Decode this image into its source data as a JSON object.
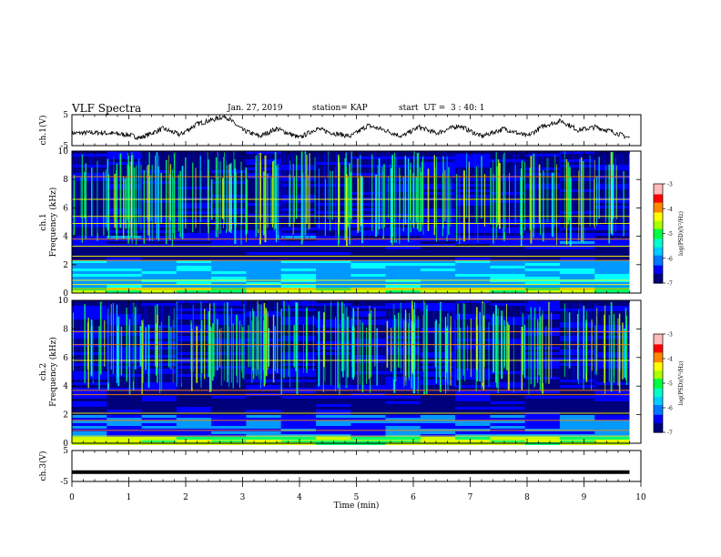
{
  "header": {
    "title": "VLF Spectra",
    "date": "Jan. 27, 2019",
    "station": "station= KAP",
    "start": "start  UT =  3 : 40: 1"
  },
  "colors": {
    "spectrum_scale": [
      "#00007a",
      "#0000ff",
      "#0099ff",
      "#00ffff",
      "#00ff66",
      "#ccff00",
      "#ffff00",
      "#ff8800",
      "#ff0000",
      "#ffaaaa"
    ],
    "trace": "#000000",
    "axis": "#000000"
  },
  "chart_data": [
    {
      "type": "line",
      "panel": "ch1-waveform",
      "ylabel": "ch.1(V)",
      "xlim": [
        0,
        10
      ],
      "ylim": [
        -5,
        5
      ],
      "yticks": [
        "5",
        "-5"
      ],
      "x_end": 9.8,
      "description_points": [
        [
          0.0,
          -1.0
        ],
        [
          0.5,
          -0.8
        ],
        [
          1.0,
          -1.5
        ],
        [
          1.2,
          -2.5
        ],
        [
          1.6,
          0.5
        ],
        [
          1.9,
          -1.5
        ],
        [
          2.2,
          2.0
        ],
        [
          2.5,
          3.5
        ],
        [
          2.7,
          4.5
        ],
        [
          3.0,
          0.0
        ],
        [
          3.3,
          -2.0
        ],
        [
          3.6,
          0.5
        ],
        [
          4.0,
          -2.5
        ],
        [
          4.3,
          0.5
        ],
        [
          4.6,
          -1.0
        ],
        [
          4.9,
          -2.0
        ],
        [
          5.2,
          1.5
        ],
        [
          5.5,
          0.0
        ],
        [
          5.8,
          -2.0
        ],
        [
          6.1,
          1.0
        ],
        [
          6.4,
          -1.0
        ],
        [
          6.8,
          1.5
        ],
        [
          7.2,
          -2.0
        ],
        [
          7.6,
          0.5
        ],
        [
          8.0,
          -2.0
        ],
        [
          8.3,
          1.5
        ],
        [
          8.6,
          3.0
        ],
        [
          8.9,
          0.0
        ],
        [
          9.2,
          1.0
        ],
        [
          9.5,
          -0.5
        ],
        [
          9.8,
          -2.5
        ]
      ]
    },
    {
      "type": "heatmap",
      "panel": "ch1-spectrogram",
      "ylabel": "ch.1",
      "ylabel2": "Frequency (kHz)",
      "xlim": [
        0,
        10
      ],
      "ylim": [
        0,
        10
      ],
      "yticks": [
        "0",
        "2",
        "4",
        "6",
        "8",
        "10"
      ],
      "x_end": 9.8,
      "colorbar": {
        "label": "log(PSD)(V²/Hz)",
        "range": [
          -7,
          -3
        ],
        "ticks": [
          "-3",
          "-4",
          "-5",
          "-6",
          "-7"
        ]
      }
    },
    {
      "type": "heatmap",
      "panel": "ch2-spectrogram",
      "ylabel": "ch.2",
      "ylabel2": "Frequency (kHz)",
      "xlim": [
        0,
        10
      ],
      "ylim": [
        0,
        10
      ],
      "yticks": [
        "0",
        "2",
        "4",
        "6",
        "8",
        "10"
      ],
      "x_end": 9.8,
      "colorbar": {
        "label": "log(PSD)(V²/Hz)",
        "range": [
          -7,
          -3
        ],
        "ticks": [
          "-3",
          "-4",
          "-5",
          "-6",
          "-7"
        ]
      }
    },
    {
      "type": "line",
      "panel": "ch3-waveform",
      "ylabel": "ch.3(V)",
      "xlabel": "Time  (min)",
      "xlim": [
        0,
        10
      ],
      "ylim": [
        -5,
        5
      ],
      "yticks": [
        "5",
        "-5"
      ],
      "xticks": [
        "0",
        "1",
        "2",
        "3",
        "4",
        "5",
        "6",
        "7",
        "8",
        "9",
        "10"
      ],
      "x_end": 9.8,
      "constant_value": -2.0
    }
  ]
}
